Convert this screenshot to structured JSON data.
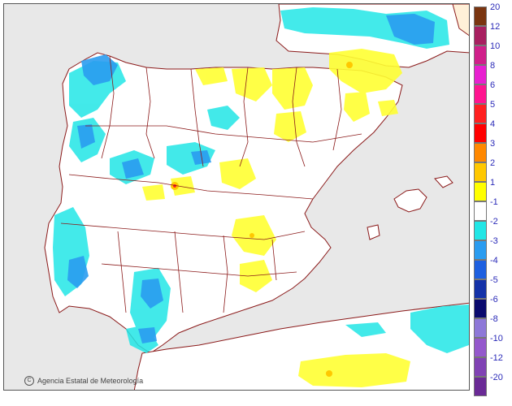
{
  "credit": {
    "symbol": "C",
    "text": "Agencia Estatal de Meteorología"
  },
  "legend": {
    "items": [
      {
        "label": "20",
        "color": "#7a3510"
      },
      {
        "label": "12",
        "color": "#a82060"
      },
      {
        "label": "10",
        "color": "#d0208a"
      },
      {
        "label": "8",
        "color": "#e820d0"
      },
      {
        "label": "6",
        "color": "#ff1490"
      },
      {
        "label": "5",
        "color": "#ff2020"
      },
      {
        "label": "4",
        "color": "#ff0000"
      },
      {
        "label": "3",
        "color": "#ff8800"
      },
      {
        "label": "2",
        "color": "#ffc800"
      },
      {
        "label": "1",
        "color": "#ffff00"
      },
      {
        "label": "-1",
        "color": "#ffffff"
      },
      {
        "label": "-2",
        "color": "#22e6e6"
      },
      {
        "label": "-3",
        "color": "#2a9cf0"
      },
      {
        "label": "-4",
        "color": "#1e60e0"
      },
      {
        "label": "-5",
        "color": "#1432a8"
      },
      {
        "label": "-6",
        "color": "#0a0a6e"
      },
      {
        "label": "-8",
        "color": "#8e78d8"
      },
      {
        "label": "-10",
        "color": "#9458cc"
      },
      {
        "label": "-12",
        "color": "#8042b4"
      },
      {
        "label": "-20",
        "color": "#6a2a96"
      }
    ]
  },
  "map": {
    "sea_color": "#e8e8e8",
    "land_color": "#ffffff",
    "border_color": "#8b1a1a"
  }
}
